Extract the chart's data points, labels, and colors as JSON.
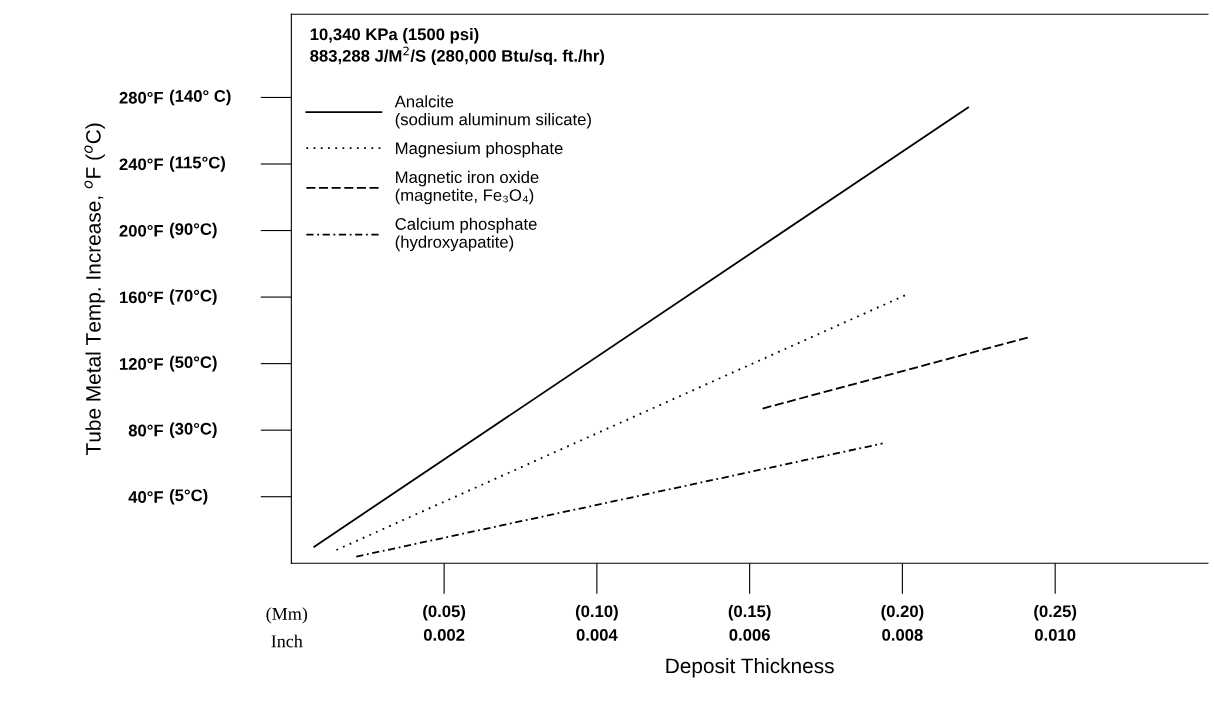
{
  "chart_data": {
    "type": "line",
    "xlabel": "Deposit Thickness",
    "ylabel": "Tube Metal Temp. Increase, $^{o}$F ($^{o}$C)",
    "annotations": [
      "10,340 KPa (1500 psi)\n883,288 J/M$^{2}$/S (280,000 Btu/sq. ft./hr)",
      "(Mm)",
      "Inch",
      "(5°C)",
      "(30°C)",
      "(50°C)",
      "(70°C)",
      "(90°C)",
      "(115°C)",
      "(140° C)"
    ],
    "xlim": [
      0,
      0.012
    ],
    "ylim": [
      0,
      330
    ],
    "x2lim": [
      0,
      0.3
    ],
    "xticks": [
      0.002,
      0.004,
      0.006,
      0.008,
      {
        "value": 0.01,
        "label": "0.010"
      }
    ],
    "x2ticks": [
      {
        "value": 0.05,
        "label": "(0.05)"
      },
      {
        "value": 0.1,
        "label": "(0.10)"
      },
      {
        "value": 0.15,
        "label": "(0.15)"
      },
      {
        "value": 0.2,
        "label": "(0.20)"
      },
      {
        "value": 0.25,
        "label": "(0.25)"
      }
    ],
    "yticks": [
      {
        "value": 40,
        "label": "40°F"
      },
      {
        "value": 80,
        "label": "80°F"
      },
      {
        "value": 120,
        "label": "120°F"
      },
      {
        "value": 160,
        "label": "160°F"
      },
      {
        "value": 200,
        "label": "200°F"
      },
      {
        "value": 240,
        "label": "240°F"
      },
      {
        "value": 280,
        "label": "280°F"
      }
    ],
    "grid": false,
    "legend": "top left",
    "marker": "none",
    "series": [
      {
        "name": "Analcite\n(sodium aluminum silicate)",
        "color": "#000000",
        "line_style": "solid",
        "x": [
          0.0003,
          0.00886
        ],
        "values": [
          10,
          274
        ]
      },
      {
        "name": "Magnesium phosphate",
        "color": "#000000",
        "line_style": "dotted",
        "x": [
          0.00059,
          0.00808
        ],
        "values": [
          8,
          162
        ]
      },
      {
        "name": "Magnetic iron oxide\n(magnetite, Fe₃O₄)",
        "color": "#000000",
        "line_style": "dashed",
        "x": [
          0.00617,
          0.00967
        ],
        "values": [
          93,
          136
        ]
      },
      {
        "name": "Calcium phosphate\n(hydroxyapatite)",
        "color": "#000000",
        "line_style": "dashdot",
        "x": [
          0.00085,
          0.00774
        ],
        "values": [
          4,
          72
        ]
      }
    ]
  }
}
